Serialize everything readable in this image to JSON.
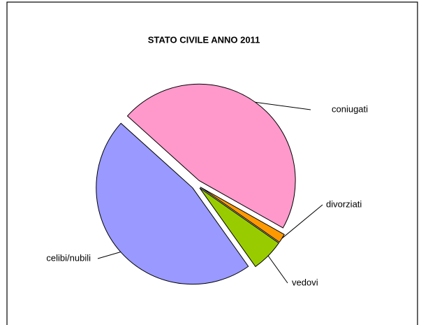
{
  "chart_data": {
    "type": "pie",
    "title": "STATO CIVILE ANNO 2011",
    "categories": [
      "coniugati",
      "divorziati",
      "vedovi",
      "celibi/nubili"
    ],
    "values": [
      46.5,
      1.5,
      5.5,
      46.5
    ],
    "colors": [
      "#ff99cc",
      "#ff9900",
      "#99cc00",
      "#9999ff"
    ]
  }
}
